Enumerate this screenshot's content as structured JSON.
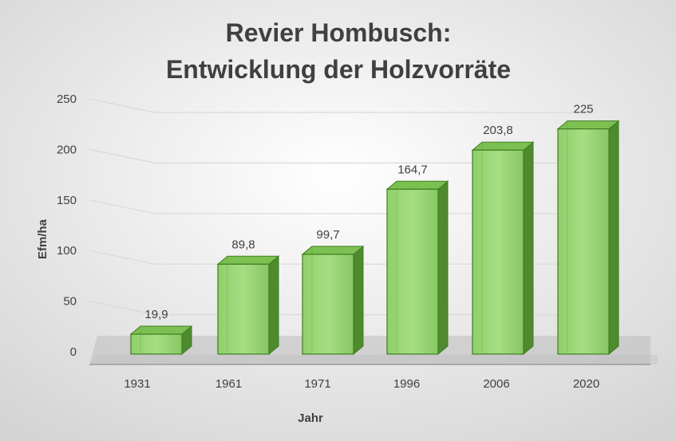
{
  "chart_data": {
    "type": "bar",
    "title_line1": "Revier Hombusch:",
    "title_line2": "Entwicklung der Holzvorräte",
    "xlabel": "Jahr",
    "ylabel": "Efm/ha",
    "categories": [
      "1931",
      "1961",
      "1971",
      "1996",
      "2006",
      "2020"
    ],
    "values": [
      19.9,
      89.8,
      99.7,
      164.7,
      203.8,
      225
    ],
    "value_labels": [
      "19,9",
      "89,8",
      "99,7",
      "164,7",
      "203,8",
      "225"
    ],
    "ylim": [
      0,
      250
    ],
    "yticks": [
      0,
      50,
      100,
      150,
      200,
      250
    ],
    "grid": true,
    "style": "3d-column",
    "colors": {
      "bar_front": "#8fd16a",
      "bar_top": "#7cc052",
      "bar_side": "#4f8a2e",
      "bar_edge": "#3f7d21",
      "grid": "#d9d9d9",
      "floor": "#c6c6c6",
      "text": "#404040"
    }
  }
}
